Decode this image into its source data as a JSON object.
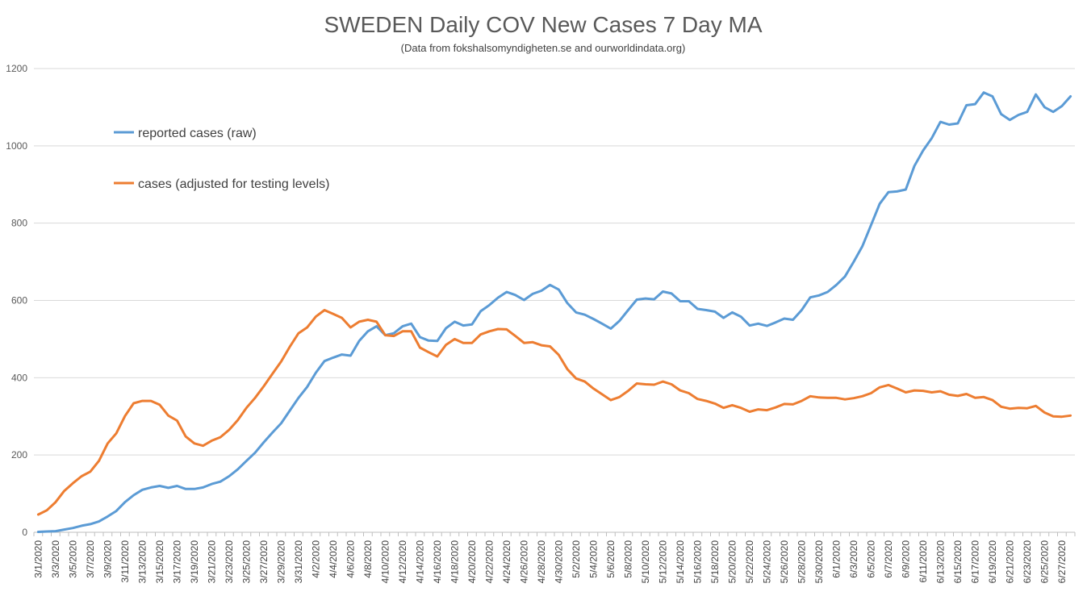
{
  "chart_data": {
    "type": "line",
    "title": "SWEDEN Daily COV New Cases 7 Day MA",
    "subtitle": "(Data from  fokshalsomyndigheten.se and ourworldindata.org)",
    "xlabel": "",
    "ylabel": "",
    "ylim": [
      0,
      1200
    ],
    "yticks": [
      0,
      200,
      400,
      600,
      800,
      1000,
      1200
    ],
    "grid": true,
    "legend_position": "top-left",
    "x_start": "3/1/2020",
    "x_end": "6/28/2020",
    "x_tick_labels": [
      "3/1/2020",
      "3/3/2020",
      "3/5/2020",
      "3/7/2020",
      "3/9/2020",
      "3/11/2020",
      "3/13/2020",
      "3/15/2020",
      "3/17/2020",
      "3/19/2020",
      "3/21/2020",
      "3/23/2020",
      "3/25/2020",
      "3/27/2020",
      "3/29/2020",
      "3/31/2020",
      "4/2/2020",
      "4/4/2020",
      "4/6/2020",
      "4/8/2020",
      "4/10/2020",
      "4/12/2020",
      "4/14/2020",
      "4/16/2020",
      "4/18/2020",
      "4/20/2020",
      "4/22/2020",
      "4/24/2020",
      "4/26/2020",
      "4/28/2020",
      "4/30/2020",
      "5/2/2020",
      "5/4/2020",
      "5/6/2020",
      "5/8/2020",
      "5/10/2020",
      "5/12/2020",
      "5/14/2020",
      "5/16/2020",
      "5/18/2020",
      "5/20/2020",
      "5/22/2020",
      "5/24/2020",
      "5/26/2020",
      "5/28/2020",
      "5/30/2020",
      "6/1/2020",
      "6/3/2020",
      "6/5/2020",
      "6/7/2020",
      "6/9/2020",
      "6/11/2020",
      "6/13/2020",
      "6/15/2020",
      "6/17/2020",
      "6/19/2020",
      "6/21/2020",
      "6/23/2020",
      "6/25/2020",
      "6/27/2020"
    ],
    "series": [
      {
        "name": "reported cases (raw)",
        "color": "#5B9BD5",
        "values": [
          1,
          2,
          3,
          7,
          11,
          17,
          21,
          28,
          41,
          55,
          78,
          96,
          110,
          116,
          120,
          115,
          120,
          112,
          112,
          116,
          125,
          131,
          145,
          163,
          185,
          206,
          233,
          258,
          282,
          315,
          348,
          376,
          413,
          443,
          452,
          460,
          457,
          495,
          520,
          533,
          510,
          515,
          533,
          540,
          505,
          496,
          495,
          528,
          545,
          535,
          538,
          572,
          588,
          607,
          622,
          614,
          601,
          617,
          625,
          640,
          628,
          593,
          569,
          563,
          552,
          540,
          527,
          547,
          575,
          602,
          605,
          603,
          623,
          618,
          598,
          598,
          578,
          575,
          571,
          555,
          569,
          558,
          535,
          540,
          534,
          543,
          553,
          550,
          575,
          608,
          613,
          622,
          640,
          662,
          700,
          740,
          795,
          850,
          880,
          882,
          887,
          948,
          988,
          1020,
          1062,
          1055,
          1058,
          1105,
          1108,
          1138,
          1128,
          1082,
          1067,
          1080,
          1088,
          1133,
          1100,
          1088,
          1103,
          1128
        ]
      },
      {
        "name": "cases (adjusted for testing levels)",
        "color": "#ED7D31",
        "values": [
          46,
          57,
          78,
          107,
          127,
          145,
          157,
          185,
          230,
          256,
          301,
          334,
          340,
          340,
          330,
          302,
          289,
          248,
          230,
          224,
          237,
          246,
          265,
          290,
          322,
          348,
          378,
          410,
          442,
          480,
          515,
          530,
          558,
          575,
          565,
          555,
          530,
          545,
          550,
          545,
          510,
          508,
          520,
          520,
          478,
          466,
          455,
          485,
          500,
          490,
          490,
          512,
          520,
          526,
          525,
          508,
          490,
          492,
          484,
          481,
          459,
          422,
          398,
          390,
          372,
          357,
          342,
          350,
          366,
          385,
          383,
          382,
          390,
          383,
          367,
          360,
          345,
          340,
          333,
          322,
          329,
          322,
          312,
          318,
          316,
          323,
          332,
          331,
          340,
          352,
          349,
          348,
          348,
          344,
          347,
          352,
          360,
          375,
          381,
          372,
          362,
          367,
          366,
          362,
          365,
          356,
          353,
          358,
          348,
          350,
          342,
          325,
          320,
          322,
          321,
          327,
          310,
          300,
          299,
          302
        ]
      }
    ]
  }
}
